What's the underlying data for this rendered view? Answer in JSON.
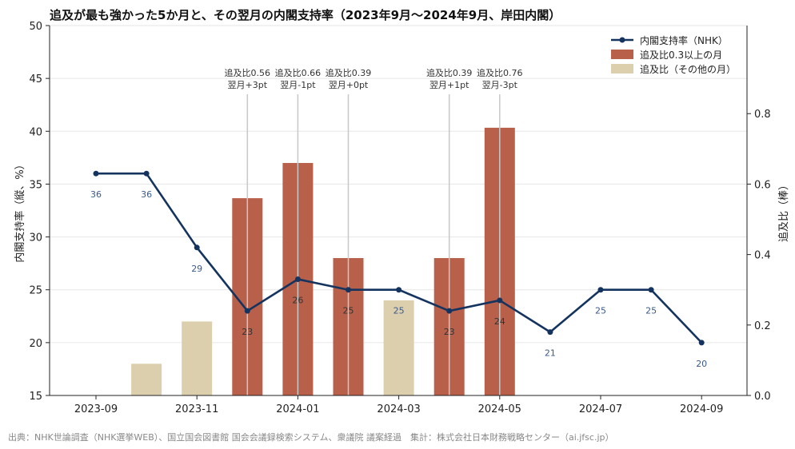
{
  "chart_data": {
    "type": "bar+line",
    "title": "追及が最も強かった5か月と、その翌月の内閣支持率（2023年9月〜2024年9月、岸田内閣）",
    "source": "出典：NHK世論調査（NHK選挙WEB）、国立国会図書館 国会会議録検索システム、衆議院 議案経過　集計：株式会社日本財務戦略センター（ai.jfsc.jp）",
    "ylabel_left": "内閣支持率（縦、%）",
    "ylabel_right": "追及比（棒）",
    "ylim_left": [
      15,
      50
    ],
    "yticks_left": [
      "15",
      "20",
      "25",
      "30",
      "35",
      "40",
      "45",
      "50"
    ],
    "ylim_right": [
      0,
      1.05
    ],
    "yticks_right": [
      "0.0",
      "0.2",
      "0.4",
      "0.6",
      "0.8"
    ],
    "months": [
      "2023-09",
      "2023-10",
      "2023-11",
      "2023-12",
      "2024-01",
      "2024-02",
      "2024-03",
      "2024-04",
      "2024-05",
      "2024-06",
      "2024-07",
      "2024-08",
      "2024-09"
    ],
    "xtick_labels": [
      "2023-09",
      "2023-11",
      "2024-01",
      "2024-03",
      "2024-05",
      "2024-07",
      "2024-09"
    ],
    "xtick_indices": [
      0,
      2,
      4,
      6,
      8,
      10,
      12
    ],
    "support_series": {
      "name": "内閣支持率（NHK）",
      "values": [
        36,
        36,
        29,
        23,
        26,
        25,
        25,
        23,
        24,
        21,
        25,
        25,
        20
      ],
      "labels": [
        "36",
        "36",
        "29",
        "23",
        "26",
        "25",
        "25",
        "23",
        "24",
        "21",
        "25",
        "25",
        "20"
      ],
      "color": "#14345f"
    },
    "bars": [
      {
        "index": 1,
        "value": 0.09,
        "group": "other"
      },
      {
        "index": 2,
        "value": 0.21,
        "group": "other"
      },
      {
        "index": 3,
        "value": 0.56,
        "group": "high"
      },
      {
        "index": 4,
        "value": 0.66,
        "group": "high"
      },
      {
        "index": 5,
        "value": 0.39,
        "group": "high"
      },
      {
        "index": 6,
        "value": 0.27,
        "group": "other"
      },
      {
        "index": 7,
        "value": 0.39,
        "group": "high"
      },
      {
        "index": 8,
        "value": 0.76,
        "group": "high"
      }
    ],
    "bar_colors": {
      "high": "#b9604a",
      "other": "#dccfad"
    },
    "annotations": [
      {
        "index": 3,
        "line1": "追及比0.56",
        "line2": "翌月+3pt"
      },
      {
        "index": 4,
        "line1": "追及比0.66",
        "line2": "翌月-1pt"
      },
      {
        "index": 5,
        "line1": "追及比0.39",
        "line2": "翌月+0pt"
      },
      {
        "index": 7,
        "line1": "追及比0.39",
        "line2": "翌月+1pt"
      },
      {
        "index": 8,
        "line1": "追及比0.76",
        "line2": "翌月-3pt"
      }
    ],
    "legend": {
      "position": "top-right",
      "items": [
        {
          "label": "内閣支持率（NHK）",
          "kind": "line",
          "color": "#14345f"
        },
        {
          "label": "追及比0.3以上の月",
          "kind": "bar",
          "color": "#b9604a"
        },
        {
          "label": "追及比（その他の月）",
          "kind": "bar",
          "color": "#dccfad"
        }
      ]
    },
    "grid": "horizontal"
  }
}
